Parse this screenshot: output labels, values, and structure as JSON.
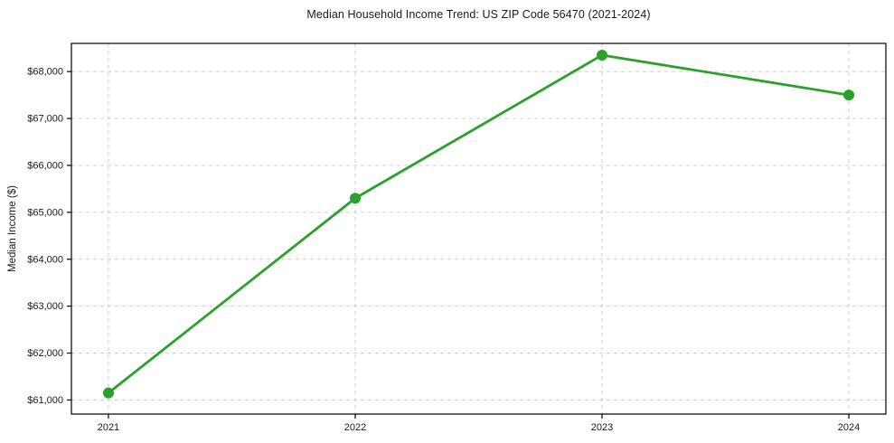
{
  "page": {
    "background": "#ffffff"
  },
  "chart_data": {
    "type": "line",
    "title": "Median Household Income Trend: US ZIP Code 56470 (2021-2024)",
    "xlabel": "",
    "ylabel": "Median Income ($)",
    "x": [
      2021,
      2022,
      2023,
      2024
    ],
    "xtick_labels": [
      "2021",
      "2022",
      "2023",
      "2024"
    ],
    "series": [
      {
        "name": "median-household-income",
        "values": [
          61150,
          65300,
          68350,
          67500
        ],
        "color": "#2ca02c",
        "marker": "circle",
        "marker_radius": 6,
        "line_width": 2.8
      }
    ],
    "yticks": [
      61000,
      62000,
      63000,
      64000,
      65000,
      66000,
      67000,
      68000
    ],
    "ytick_labels": [
      "$61,000",
      "$62,000",
      "$63,000",
      "$64,000",
      "$65,000",
      "$66,000",
      "$67,000",
      "$68,000"
    ],
    "xlim": [
      2020.85,
      2024.15
    ],
    "ylim": [
      60700,
      68600
    ],
    "grid": true,
    "grid_style": "dashed",
    "grid_color": "#cccccc",
    "spine_color": "#000000",
    "tick_color": "#000000",
    "text_color": "#1a1a1a",
    "legend_position": "none"
  }
}
